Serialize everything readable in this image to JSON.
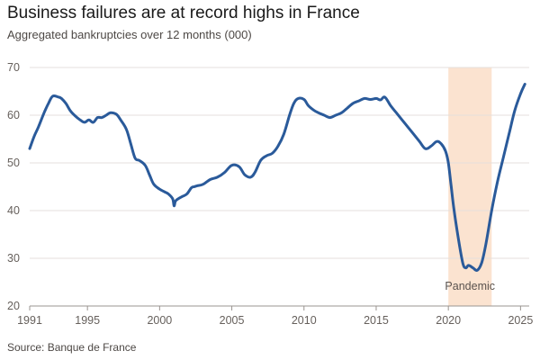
{
  "header": {
    "title": "Business failures are at record highs in France",
    "subtitle": "Aggregated bankruptcies over 12 months (000)"
  },
  "footer": {
    "source": "Source: Banque de France"
  },
  "colors": {
    "line": "#2a5a9a",
    "shade": "#fbe3d0",
    "grid": "#e4dfdc",
    "axis": "#9a9490"
  },
  "chart_data": {
    "type": "line",
    "title": "Business failures are at record highs in France",
    "subtitle": "Aggregated bankruptcies over 12 months (000)",
    "xlabel": "",
    "ylabel": "",
    "xlim": [
      1991,
      2025.6
    ],
    "ylim": [
      20,
      70
    ],
    "grid": true,
    "x_ticks": [
      {
        "value": 1991,
        "label": "1991"
      },
      {
        "value": 1995,
        "label": "1995"
      },
      {
        "value": 2000,
        "label": "2000"
      },
      {
        "value": 2005,
        "label": "2005"
      },
      {
        "value": 2010,
        "label": "2010"
      },
      {
        "value": 2015,
        "label": "2015"
      },
      {
        "value": 2020,
        "label": "2020"
      },
      {
        "value": 2025,
        "label": "2025"
      }
    ],
    "y_ticks": [
      {
        "value": 20,
        "label": "20"
      },
      {
        "value": 30,
        "label": "30"
      },
      {
        "value": 40,
        "label": "40"
      },
      {
        "value": 50,
        "label": "50"
      },
      {
        "value": 60,
        "label": "60"
      },
      {
        "value": 70,
        "label": "70"
      }
    ],
    "shaded_region": {
      "label": "Pandemic",
      "x_start": 2020,
      "x_end": 2023
    },
    "series": [
      {
        "x": [
          1991.0,
          1991.3,
          1991.6,
          1992.0,
          1992.3,
          1992.6,
          1993.0,
          1993.2,
          1993.5,
          1993.8,
          1994.1,
          1994.5,
          1994.8,
          1995.1,
          1995.4,
          1995.7,
          1996.0,
          1996.3,
          1996.6,
          1997.0,
          1997.3,
          1997.7,
          1998.0,
          1998.3,
          1998.6,
          1999.0,
          1999.3,
          1999.6,
          2000.0,
          2000.3,
          2000.6,
          2000.9,
          2001.0,
          2001.1,
          2001.3,
          2001.6,
          2001.9,
          2002.2,
          2002.4,
          2002.6,
          2003.0,
          2003.5,
          2004.0,
          2004.5,
          2005.0,
          2005.5,
          2005.9,
          2006.3,
          2006.6,
          2007.0,
          2007.4,
          2007.8,
          2008.2,
          2008.6,
          2009.0,
          2009.3,
          2009.6,
          2010.0,
          2010.3,
          2010.7,
          2011.0,
          2011.4,
          2011.8,
          2012.2,
          2012.6,
          2013.0,
          2013.4,
          2013.8,
          2014.2,
          2014.6,
          2015.0,
          2015.3,
          2015.6,
          2016.0,
          2016.4,
          2016.8,
          2017.2,
          2017.6,
          2018.0,
          2018.4,
          2018.8,
          2019.2,
          2019.5,
          2019.8,
          2020.0,
          2020.2,
          2020.4,
          2020.7,
          2021.0,
          2021.2,
          2021.4,
          2021.7,
          2022.0,
          2022.3,
          2022.6,
          2023.0,
          2023.4,
          2023.8,
          2024.2,
          2024.6,
          2025.0,
          2025.3
        ],
        "y": [
          53,
          55.5,
          57.5,
          60.5,
          62.5,
          64,
          63.8,
          63.5,
          62.5,
          61,
          60,
          59,
          58.5,
          59,
          58.5,
          59.5,
          59.5,
          60,
          60.5,
          60.2,
          59,
          57,
          54,
          51,
          50.5,
          49.5,
          47.5,
          45.5,
          44.5,
          44,
          43.5,
          42.5,
          41,
          42,
          42.5,
          43,
          43.5,
          44.8,
          45,
          45.2,
          45.5,
          46.5,
          47,
          48,
          49.5,
          49.2,
          47.5,
          47,
          48,
          50.5,
          51.5,
          52,
          53.5,
          56,
          60,
          62.5,
          63.5,
          63.3,
          62,
          61,
          60.5,
          60,
          59.5,
          60,
          60.5,
          61.5,
          62.5,
          63,
          63.5,
          63.3,
          63.5,
          63.2,
          63.8,
          62,
          60.5,
          59,
          57.5,
          56,
          54.5,
          53,
          53.5,
          54.5,
          54,
          52.5,
          50,
          45,
          40,
          34,
          29,
          28,
          28.5,
          28,
          27.5,
          29,
          33,
          40,
          46,
          51,
          56,
          61,
          64.5,
          66.5
        ]
      }
    ]
  }
}
